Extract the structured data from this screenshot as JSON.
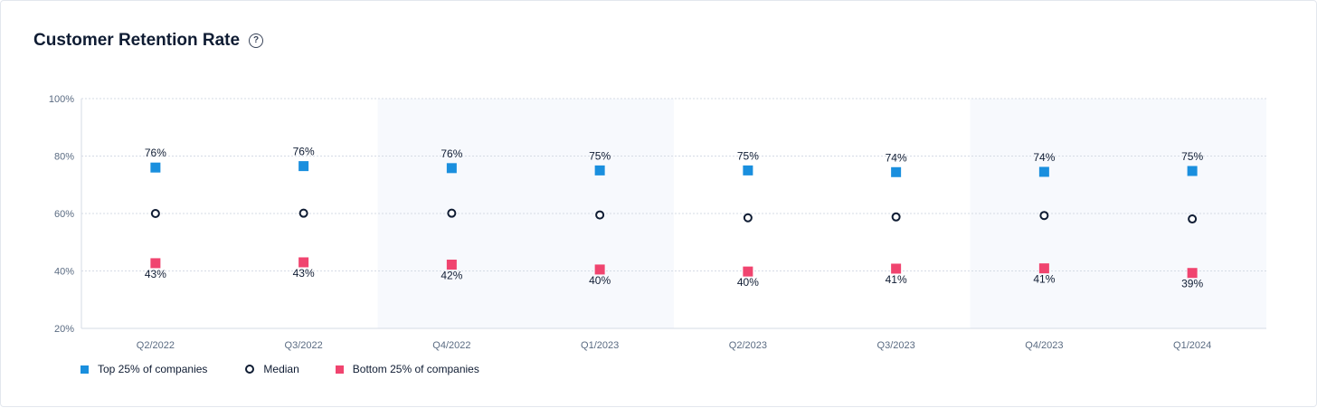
{
  "title": "Customer Retention Rate",
  "colors": {
    "top": "#1a8fde",
    "bottom": "#f0446f",
    "median": "#0f1c33",
    "band": "#f7f9fd",
    "grid": "#d5dbe5",
    "axis_text": "#5a6b82",
    "label_text": "#0f1c33"
  },
  "icons": {
    "help": "help-circle-icon"
  },
  "help_glyph": "?",
  "legend": {
    "top": "Top 25% of companies",
    "median": "Median",
    "bottom": "Bottom 25% of companies"
  },
  "chart_data": {
    "type": "dumbbell",
    "title": "Customer Retention Rate",
    "categories": [
      "Q2/2022",
      "Q3/2022",
      "Q4/2022",
      "Q1/2023",
      "Q2/2023",
      "Q3/2023",
      "Q4/2023",
      "Q1/2024"
    ],
    "y_ticks": [
      "20%",
      "40%",
      "60%",
      "80%",
      "100%"
    ],
    "ylim": [
      20,
      100
    ],
    "grid": true,
    "legend_position": "bottom-left",
    "series": [
      {
        "name": "Top 25% of companies",
        "values": [
          76,
          76.5,
          75.8,
          75,
          75,
          74.4,
          74.5,
          74.8
        ],
        "labels": [
          "76%",
          "76%",
          "76%",
          "75%",
          "75%",
          "74%",
          "74%",
          "75%"
        ]
      },
      {
        "name": "Median",
        "values": [
          60,
          60.1,
          60.1,
          59.5,
          58.5,
          58.8,
          59.3,
          58.1
        ]
      },
      {
        "name": "Bottom 25% of companies",
        "values": [
          42.7,
          43,
          42.2,
          40.5,
          39.8,
          40.8,
          40.9,
          39.3
        ],
        "labels": [
          "43%",
          "43%",
          "42%",
          "40%",
          "40%",
          "41%",
          "41%",
          "39%"
        ]
      }
    ]
  }
}
